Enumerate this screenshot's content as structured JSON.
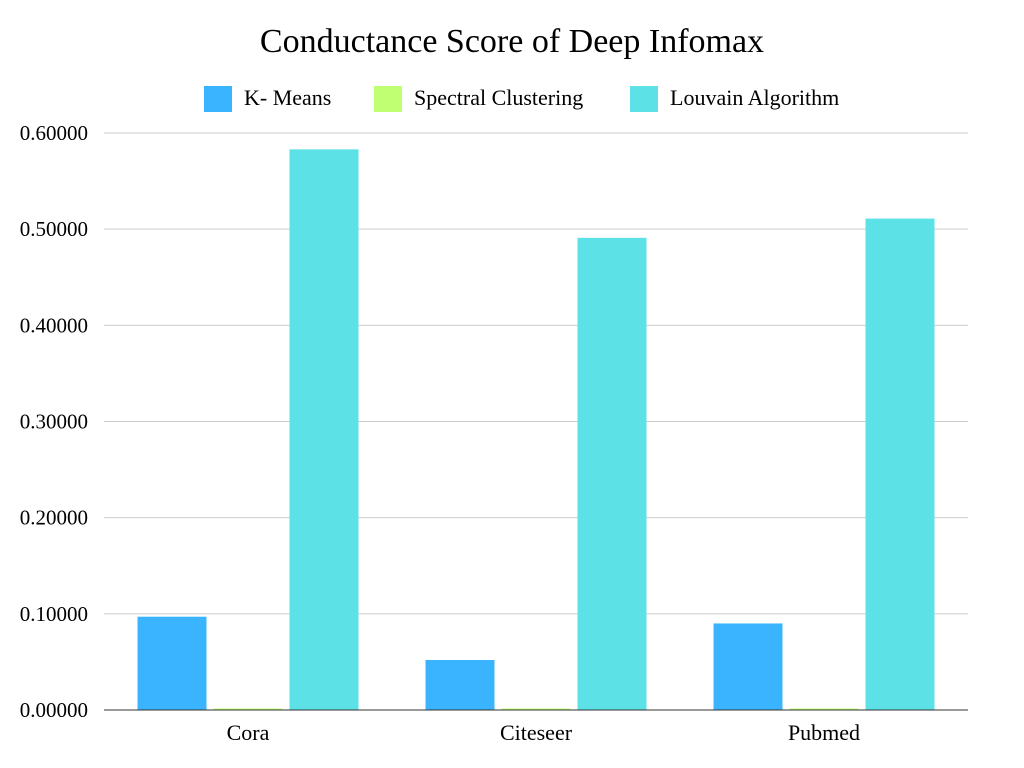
{
  "chart_data": {
    "type": "bar",
    "title": "Conductance Score of Deep Infomax",
    "xlabel": "",
    "ylabel": "",
    "categories": [
      "Cora",
      "Citeseer",
      "Pubmed"
    ],
    "series": [
      {
        "name": "K- Means",
        "values": [
          0.097,
          0.052,
          0.09
        ],
        "color": "#3bb4ff"
      },
      {
        "name": "Spectral Clustering",
        "values": [
          0.0,
          0.0,
          0.0
        ],
        "color": "#c1ff72"
      },
      {
        "name": "Louvain Algorithm",
        "values": [
          0.583,
          0.491,
          0.511
        ],
        "color": "#5ce1e6"
      }
    ],
    "ylim": [
      0,
      0.6
    ],
    "yticks": [
      "0.00000",
      "0.10000",
      "0.20000",
      "0.30000",
      "0.40000",
      "0.50000",
      "0.60000"
    ],
    "grid": true,
    "legend_position": "top"
  }
}
